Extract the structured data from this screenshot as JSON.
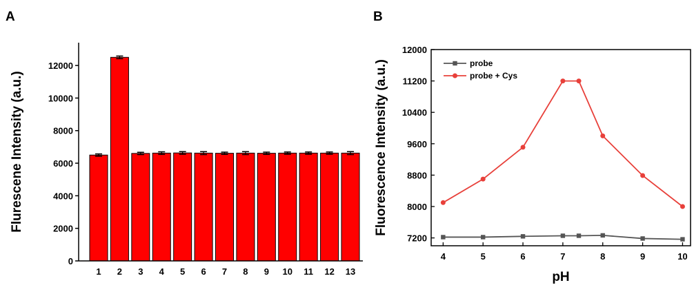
{
  "chart_data": [
    {
      "type": "bar",
      "panel_label": "A",
      "title": "",
      "xlabel": "",
      "ylabel": "Flurescene Intensity (a.u.)",
      "categories": [
        "1",
        "2",
        "3",
        "4",
        "5",
        "6",
        "7",
        "8",
        "9",
        "10",
        "11",
        "12",
        "13"
      ],
      "values": [
        6500,
        12500,
        6600,
        6620,
        6630,
        6620,
        6610,
        6620,
        6610,
        6620,
        6620,
        6620,
        6620
      ],
      "errors": [
        70,
        80,
        70,
        80,
        80,
        90,
        70,
        90,
        70,
        70,
        70,
        70,
        90
      ],
      "ylim": [
        0,
        13400
      ],
      "yticks": [
        0,
        2000,
        4000,
        6000,
        8000,
        10000,
        12000
      ],
      "bar_color": "#ff0000",
      "grid": false
    },
    {
      "type": "line",
      "panel_label": "B",
      "title": "",
      "xlabel": "pH",
      "ylabel": "Fluorescence Intensity (a.u.)",
      "xlim": [
        3.7,
        10.2
      ],
      "ylim": [
        7000,
        12000
      ],
      "xticks": [
        4,
        5,
        6,
        7,
        8,
        9,
        10
      ],
      "yticks": [
        7200,
        8000,
        8800,
        9600,
        10400,
        11200,
        12000
      ],
      "grid": false,
      "legend_position": "top-left",
      "series": [
        {
          "name": "probe",
          "color": "#555555",
          "marker": "square",
          "x": [
            4,
            5,
            6,
            7,
            7.4,
            8,
            9,
            10
          ],
          "y": [
            7220,
            7220,
            7240,
            7255,
            7255,
            7265,
            7185,
            7165
          ]
        },
        {
          "name": "probe + Cys",
          "color": "#e8403a",
          "marker": "circle",
          "x": [
            4,
            5,
            6,
            7,
            7.4,
            8,
            9,
            10
          ],
          "y": [
            8100,
            8700,
            9510,
            11200,
            11200,
            9800,
            8790,
            8000
          ]
        }
      ]
    }
  ]
}
